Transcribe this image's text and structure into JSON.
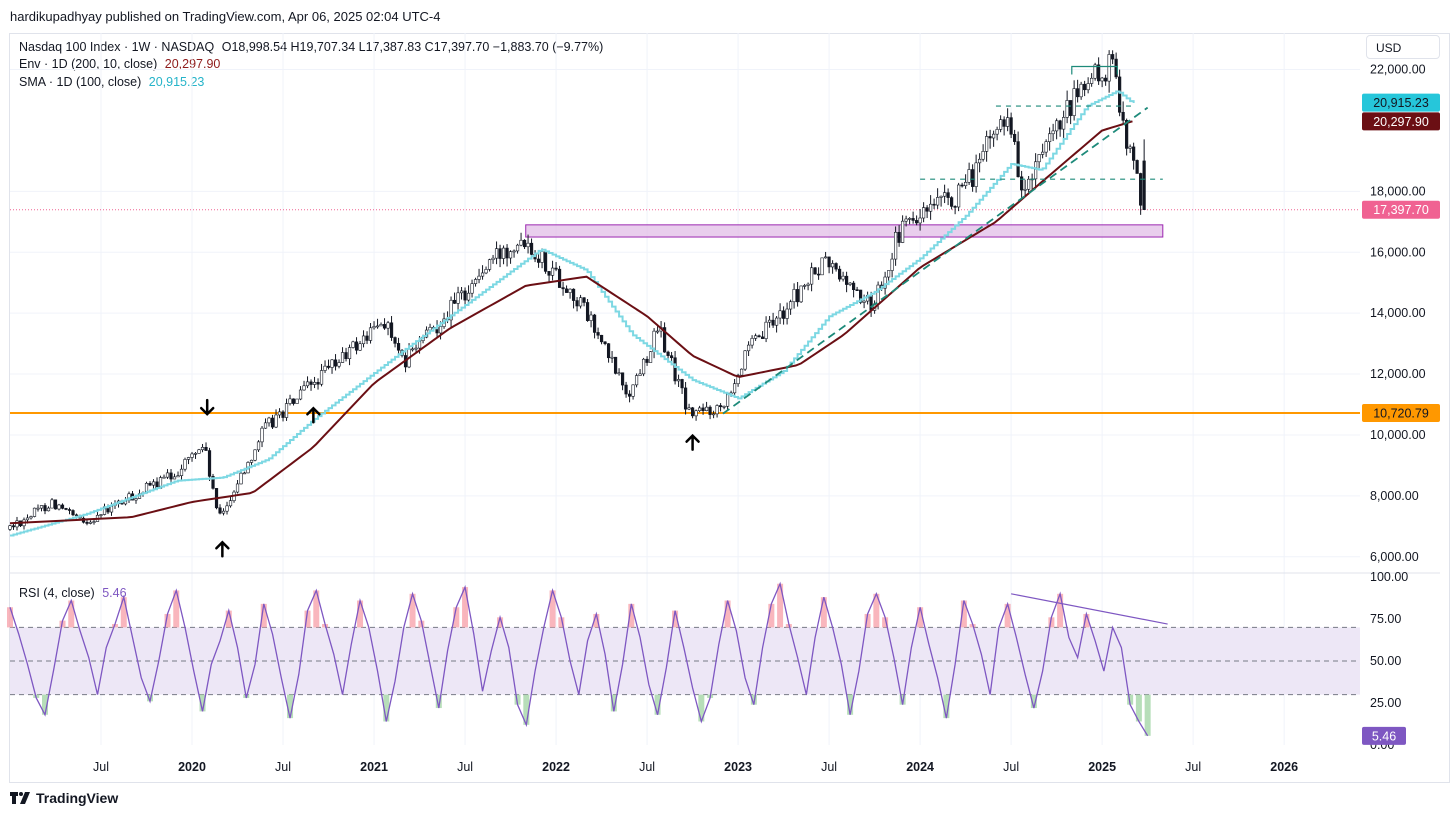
{
  "publisher_line": "hardikupadhyay published on TradingView.com, Apr 06, 2025 02:04 UTC-4",
  "brand": "TradingView",
  "brand_logo": "tradingview-logo-icon",
  "currency_button": "USD",
  "legend": {
    "title": "Nasdaq 100 Index · 1W · NASDAQ",
    "ohlc": "O18,998.54  H19,707.34  L17,387.83  C17,397.70  −1,883.70 (−9.77%)",
    "env_label": "Env · 1D (200, 10, close)",
    "env_value": "20,297.90",
    "sma_label": "SMA · 1D (100, close)",
    "sma_value": "20,915.23",
    "rsi_label": "RSI (4, close)",
    "rsi_value": "5.46"
  },
  "colors": {
    "up": "#089981",
    "down": "#f23645",
    "sma": "#7dd8e3",
    "env": "#6b0f14",
    "support": "#ff9800",
    "zone": "#e1bee7",
    "zone_border": "#9c27b0",
    "trend": "#1d8a7a",
    "rsi_line": "#7e57c2",
    "rsi_band": "#ede7f6",
    "last_price": "#f06292",
    "sma_tag": "#26c6da",
    "env_tag": "#6b0f14"
  },
  "chart_data": [
    {
      "type": "candlestick",
      "title": "Nasdaq 100 Index · 1W · NASDAQ",
      "x_range": [
        "2019-01",
        "2026-06"
      ],
      "x_tick_labels": [
        "Jul",
        "2020",
        "Jul",
        "2021",
        "Jul",
        "2022",
        "Jul",
        "2023",
        "Jul",
        "2024",
        "Jul",
        "2025",
        "Jul",
        "2026"
      ],
      "x_tick_dates": [
        "2019-07",
        "2020-01",
        "2020-07",
        "2021-01",
        "2021-07",
        "2022-01",
        "2022-07",
        "2023-01",
        "2023-07",
        "2024-01",
        "2024-07",
        "2025-01",
        "2025-07",
        "2026-01"
      ],
      "y_ticks": [
        "6,000.00",
        "8,000.00",
        "10,000.00",
        "12,000.00",
        "14,000.00",
        "16,000.00",
        "18,000.00",
        "22,000.00"
      ],
      "y_tick_values": [
        6000,
        8000,
        10000,
        12000,
        14000,
        16000,
        18000,
        22000
      ],
      "ylim": [
        5500,
        23200
      ],
      "price_path": {
        "dates": [
          "2019-01",
          "2019-04",
          "2019-06",
          "2019-09",
          "2019-12",
          "2020-02",
          "2020-03",
          "2020-06",
          "2020-09",
          "2021-02",
          "2021-03",
          "2021-09",
          "2021-11",
          "2022-03",
          "2022-06",
          "2022-08",
          "2022-10",
          "2022-12",
          "2023-02",
          "2023-07",
          "2023-10",
          "2023-12",
          "2024-04",
          "2024-07",
          "2024-08",
          "2024-12",
          "2025-02",
          "2025-03",
          "2025-04"
        ],
        "values": [
          6900,
          7800,
          7100,
          7900,
          8700,
          9700,
          7200,
          10200,
          11600,
          13800,
          12300,
          15700,
          16600,
          14200,
          11300,
          13500,
          10700,
          10900,
          12800,
          15700,
          14200,
          16800,
          17900,
          20700,
          17900,
          21500,
          22100,
          19400,
          17397.7
        ]
      },
      "last_candle": {
        "open": 18998.54,
        "high": 19707.34,
        "low": 17387.83,
        "close": 17397.7,
        "change": -1883.7,
        "change_pct": -9.77
      },
      "series": [
        {
          "name": "SMA · 1D (100, close)",
          "value": 20915.23,
          "dates": [
            "2019-01",
            "2019-06",
            "2019-12",
            "2020-03",
            "2020-06",
            "2020-09",
            "2021-03",
            "2021-09",
            "2021-12",
            "2022-03",
            "2022-06",
            "2022-10",
            "2023-01",
            "2023-04",
            "2023-07",
            "2023-10",
            "2024-01",
            "2024-04",
            "2024-07",
            "2024-09",
            "2024-12",
            "2025-02",
            "2025-03"
          ],
          "values": [
            6700,
            7400,
            8500,
            8600,
            9200,
            10500,
            12800,
            15000,
            16100,
            15400,
            13300,
            11800,
            11200,
            12100,
            13900,
            14700,
            15800,
            17200,
            18900,
            18700,
            20800,
            21300,
            20900
          ]
        },
        {
          "name": "Env · 1D (200, 10, close)",
          "value": 20297.9,
          "dates": [
            "2019-01",
            "2019-09",
            "2020-01",
            "2020-05",
            "2020-09",
            "2021-01",
            "2021-06",
            "2021-11",
            "2022-03",
            "2022-07",
            "2022-10",
            "2023-01",
            "2023-05",
            "2023-08",
            "2024-01",
            "2024-06",
            "2024-09",
            "2025-01",
            "2025-03"
          ],
          "values": [
            7100,
            7300,
            7800,
            8100,
            9600,
            11700,
            13500,
            14900,
            15200,
            13900,
            12600,
            11900,
            12300,
            13300,
            15500,
            17000,
            18300,
            20000,
            20300
          ]
        }
      ],
      "annotations": {
        "price_tags": [
          {
            "label": "20,915.23",
            "role": "sma"
          },
          {
            "label": "20,297.90",
            "role": "env"
          },
          {
            "label": "17,397.70",
            "role": "last"
          },
          {
            "label": "10,720.79",
            "role": "support"
          }
        ],
        "support_level": 10720.79,
        "resistance_zone": {
          "from": 16500,
          "to": 16900,
          "start": "2021-11",
          "end": "2025-05"
        },
        "dashed_levels": [
          {
            "value": 20800,
            "start": "2024-06",
            "end": "2025-03"
          },
          {
            "value": 18400,
            "start": "2024-01",
            "end": "2025-05"
          }
        ],
        "trendline": {
          "start_date": "2022-12",
          "start_value": 10700,
          "end_date": "2025-04",
          "end_value": 20750
        },
        "top_bracket": {
          "value": 22100,
          "start": "2024-11",
          "end": "2025-02"
        },
        "arrows": [
          {
            "date": "2020-02",
            "direction": "down",
            "icon": "arrow-down-icon"
          },
          {
            "date": "2020-03",
            "direction": "up",
            "icon": "arrow-up-icon"
          },
          {
            "date": "2020-09",
            "direction": "up",
            "icon": "arrow-up-icon"
          },
          {
            "date": "2022-10",
            "direction": "up",
            "icon": "arrow-up-icon"
          }
        ]
      }
    },
    {
      "type": "line",
      "title": "RSI (4, close)",
      "ylim": [
        0,
        100
      ],
      "y_ticks": [
        "100.00",
        "75.00",
        "50.00",
        "25.00",
        "0.00"
      ],
      "y_tick_values": [
        100,
        75,
        50,
        25,
        0
      ],
      "band": [
        30,
        70
      ],
      "last_value": 5.46,
      "divergence_line": {
        "start_date": "2024-07",
        "start_value": 90,
        "end_date": "2025-04",
        "end_value": 72
      },
      "values": [
        82,
        66,
        48,
        28,
        18,
        45,
        74,
        86,
        68,
        52,
        30,
        58,
        72,
        88,
        64,
        40,
        26,
        50,
        78,
        92,
        70,
        44,
        20,
        48,
        62,
        80,
        58,
        28,
        48,
        84,
        66,
        40,
        16,
        42,
        80,
        92,
        72,
        54,
        30,
        60,
        86,
        70,
        44,
        14,
        38,
        70,
        90,
        74,
        48,
        22,
        56,
        82,
        94,
        66,
        32,
        56,
        76,
        58,
        24,
        12,
        44,
        70,
        92,
        76,
        50,
        30,
        62,
        78,
        54,
        20,
        48,
        84,
        64,
        36,
        18,
        46,
        80,
        58,
        34,
        14,
        28,
        60,
        86,
        68,
        40,
        24,
        58,
        84,
        96,
        72,
        52,
        30,
        64,
        88,
        70,
        48,
        18,
        44,
        78,
        90,
        76,
        52,
        24,
        58,
        82,
        60,
        40,
        16,
        48,
        86,
        72,
        54,
        30,
        70,
        84,
        64,
        42,
        22,
        44,
        76,
        90,
        64,
        52,
        78,
        62,
        44,
        70,
        58,
        24,
        14,
        5.46
      ]
    }
  ]
}
